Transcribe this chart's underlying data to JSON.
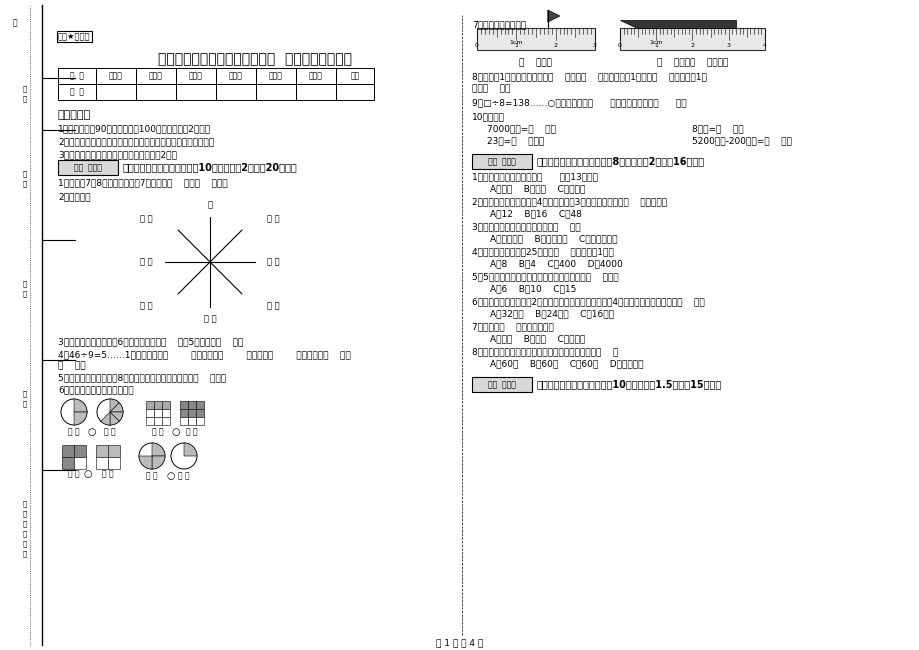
{
  "title": "三年级数学下学期期末考试试卷  豫教版（附答案）",
  "bg_color": "#ffffff",
  "text_color": "#000000",
  "page_footer": "第 1 页 共 4 页",
  "secret_label": "绝密★启用前",
  "table_headers": [
    "题  号",
    "填空题",
    "选择题",
    "判断题",
    "计算题",
    "综合题",
    "应用题",
    "总分"
  ],
  "notice_title": "考试须知：",
  "notice_items": [
    "1、考试时间：90分钟，满分为100分（含卷面分2分）。",
    "2、请首先按要求在试卷的指定位置填写您的姓名、班级、学号。",
    "3、不要在试卷上乱写乱画，卷面不整洁扣2分。"
  ],
  "section1_header": "一、用心思考，正确填空（共10小题，每题2分，共20分）。",
  "q1": "1、时针在7和8之间，分针指向7，这时是（    ）时（    ）分。",
  "q2": "2、填一填。",
  "q3": "3、把一根绳子平均分成6份，每份是它的（    ），5份是它的（    ）。",
  "q4": "4、46÷9=5……1中，被除数是（        ），除数是（        ），商是（        ），余数是（    ）。",
  "q4b": "（    ）。",
  "q5": "5、小明从一楼到三楼用8秒，那这样他从一楼到五楼用（    ）秒。",
  "q6": "6、看图写分数，并比较大小。",
  "q7": "7、量出钉子的长度。",
  "q8": "8、分针走1小格，秒针正好走（    ），是（    ）秒，分针走1大格是（    ），时针走1大",
  "q8b": "格是（    ）。",
  "q9": "9、□÷8=138……○，余数最大填（      ），这时被除数是（      ）。",
  "q10": "10、换算。",
  "q10_items": [
    "7000千克=（    ）吨",
    "8千克=（    ）克",
    "23吨=（    ）千克",
    "5200千克-200千克=（    ）吨"
  ],
  "section2_header": "二、反复比较，慎重选择（共8小题，每题2分，共16分）。",
  "mc_questions": [
    "1、按农历计算，有的年份（      ）有13个月。",
    "2、一个长方形花坛的宽是4米，长是宽的3倍，花坛的面积是（    ）平方米。",
    "3、下面现象中属于平移现象的是（    ）。",
    "4、平均每个同学体重25千克，（    ）名同学重1吨。",
    "5、5名同学打乒乓球，每两人打一场，共要打（    ）场。",
    "6、一个正方形的边长是2厘米，现在将边长扩大到原来的4倍，现在正方形的周长是（    ）。",
    "7、四边形（    ）平行四边形。",
    "8、从一个数字到相邻的下一个数字，经过的时间是（    ）"
  ],
  "mc_options": [
    [
      "A、一定",
      "B、可能",
      "C、不可能"
    ],
    [
      "A、12",
      "B、16",
      "C、48"
    ],
    [
      "A、开关抽屉",
      "B、打开瓶盖",
      "C、转动的风车"
    ],
    [
      "A、8",
      "B、4",
      "C、400",
      "D、4000"
    ],
    [
      "A、6",
      "B、10",
      "C、15"
    ],
    [
      "A、32厘米",
      "B、24厘米",
      "C、16厘米"
    ],
    [
      "A、一定",
      "B、可能",
      "C、不可能"
    ],
    [
      "A、60秒",
      "B、60分",
      "C、60时",
      "D、无法确定"
    ]
  ],
  "section3_header": "三、仔细推敲，正确判断（共10小题，每题1.5分，共15分）。",
  "score_box_label": "得分  评卷人",
  "left_labels": [
    "学号",
    "姓名",
    "班级",
    "学校",
    "乡镇（街道）"
  ]
}
